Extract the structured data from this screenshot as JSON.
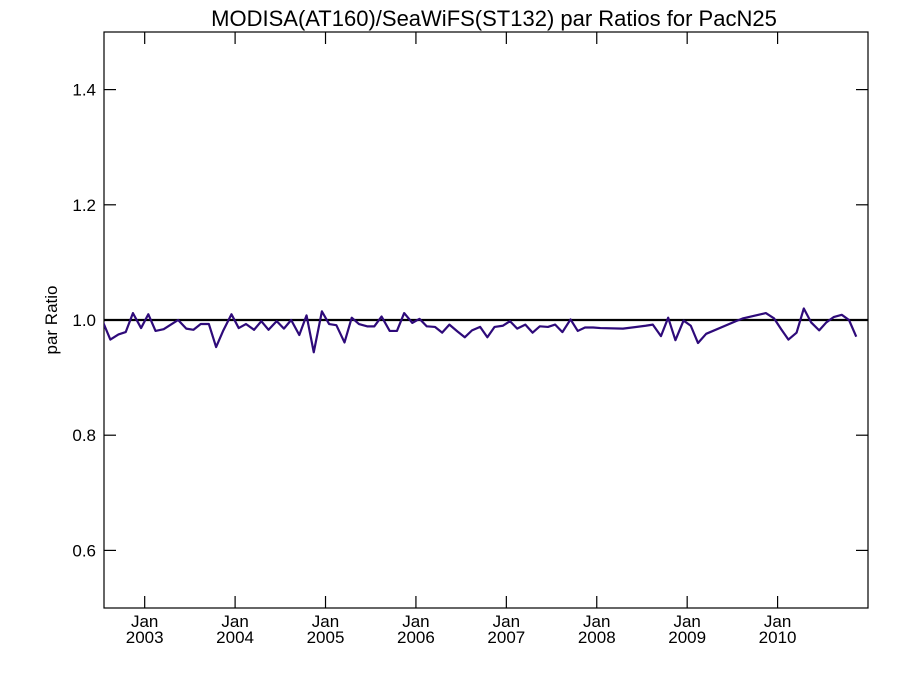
{
  "chart_data": {
    "type": "line",
    "title": "MODISA(AT160)/SeaWiFS(ST132)  par Ratios for PacN25",
    "xlabel": "",
    "ylabel": "par Ratio",
    "xlim": [
      2002.55,
      2011.0
    ],
    "ylim": [
      0.5,
      1.5
    ],
    "yticks": [
      0.6,
      0.8,
      1.0,
      1.2,
      1.4
    ],
    "ytick_labels": [
      "0.6",
      "0.8",
      "1.0",
      "1.2",
      "1.4"
    ],
    "xticks": [
      {
        "value": 2003.0,
        "month": "Jan",
        "year": "2003"
      },
      {
        "value": 2004.0,
        "month": "Jan",
        "year": "2004"
      },
      {
        "value": 2005.0,
        "month": "Jan",
        "year": "2005"
      },
      {
        "value": 2006.0,
        "month": "Jan",
        "year": "2006"
      },
      {
        "value": 2007.0,
        "month": "Jan",
        "year": "2007"
      },
      {
        "value": 2008.0,
        "month": "Jan",
        "year": "2008"
      },
      {
        "value": 2009.0,
        "month": "Jan",
        "year": "2009"
      },
      {
        "value": 2010.0,
        "month": "Jan",
        "year": "2010"
      }
    ],
    "grid": false,
    "reference_line": {
      "y": 1.0,
      "color": "#000000"
    },
    "series": [
      {
        "color": "#2e0a7a",
        "points": [
          [
            2002.54,
            0.996
          ],
          [
            2002.62,
            0.966
          ],
          [
            2002.71,
            0.975
          ],
          [
            2002.79,
            0.979
          ],
          [
            2002.87,
            1.012
          ],
          [
            2002.96,
            0.986
          ],
          [
            2003.04,
            1.01
          ],
          [
            2003.12,
            0.981
          ],
          [
            2003.21,
            0.984
          ],
          [
            2003.29,
            0.992
          ],
          [
            2003.37,
            1.0
          ],
          [
            2003.46,
            0.985
          ],
          [
            2003.54,
            0.983
          ],
          [
            2003.62,
            0.993
          ],
          [
            2003.71,
            0.993
          ],
          [
            2003.79,
            0.953
          ],
          [
            2003.87,
            0.982
          ],
          [
            2003.96,
            1.01
          ],
          [
            2004.04,
            0.986
          ],
          [
            2004.12,
            0.993
          ],
          [
            2004.21,
            0.983
          ],
          [
            2004.29,
            0.998
          ],
          [
            2004.37,
            0.983
          ],
          [
            2004.46,
            0.998
          ],
          [
            2004.54,
            0.985
          ],
          [
            2004.62,
            1.0
          ],
          [
            2004.71,
            0.974
          ],
          [
            2004.79,
            1.008
          ],
          [
            2004.87,
            0.944
          ],
          [
            2004.96,
            1.015
          ],
          [
            2005.04,
            0.993
          ],
          [
            2005.12,
            0.991
          ],
          [
            2005.21,
            0.961
          ],
          [
            2005.29,
            1.004
          ],
          [
            2005.37,
            0.993
          ],
          [
            2005.46,
            0.989
          ],
          [
            2005.54,
            0.989
          ],
          [
            2005.62,
            1.006
          ],
          [
            2005.71,
            0.981
          ],
          [
            2005.79,
            0.981
          ],
          [
            2005.87,
            1.012
          ],
          [
            2005.96,
            0.995
          ],
          [
            2006.04,
            1.002
          ],
          [
            2006.12,
            0.989
          ],
          [
            2006.21,
            0.988
          ],
          [
            2006.29,
            0.978
          ],
          [
            2006.37,
            0.992
          ],
          [
            2006.46,
            0.98
          ],
          [
            2006.54,
            0.97
          ],
          [
            2006.62,
            0.982
          ],
          [
            2006.71,
            0.988
          ],
          [
            2006.79,
            0.97
          ],
          [
            2006.87,
            0.988
          ],
          [
            2006.96,
            0.99
          ],
          [
            2007.04,
            0.998
          ],
          [
            2007.12,
            0.985
          ],
          [
            2007.21,
            0.992
          ],
          [
            2007.29,
            0.978
          ],
          [
            2007.37,
            0.989
          ],
          [
            2007.46,
            0.988
          ],
          [
            2007.54,
            0.992
          ],
          [
            2007.62,
            0.979
          ],
          [
            2007.71,
            1.001
          ],
          [
            2007.79,
            0.981
          ],
          [
            2007.87,
            0.987
          ],
          [
            2007.96,
            0.987
          ],
          [
            2008.04,
            0.986
          ],
          [
            2008.29,
            0.985
          ],
          [
            2008.54,
            0.99
          ],
          [
            2008.62,
            0.992
          ],
          [
            2008.71,
            0.972
          ],
          [
            2008.79,
            1.004
          ],
          [
            2008.87,
            0.965
          ],
          [
            2008.96,
            0.999
          ],
          [
            2009.04,
            0.99
          ],
          [
            2009.12,
            0.96
          ],
          [
            2009.21,
            0.976
          ],
          [
            2009.54,
            0.998
          ],
          [
            2009.62,
            1.003
          ],
          [
            2009.87,
            1.012
          ],
          [
            2009.96,
            1.003
          ],
          [
            2010.04,
            0.984
          ],
          [
            2010.12,
            0.966
          ],
          [
            2010.21,
            0.978
          ],
          [
            2010.29,
            1.02
          ],
          [
            2010.37,
            0.996
          ],
          [
            2010.46,
            0.982
          ],
          [
            2010.54,
            0.996
          ],
          [
            2010.62,
            1.005
          ],
          [
            2010.71,
            1.009
          ],
          [
            2010.79,
            1.0
          ],
          [
            2010.87,
            0.971
          ]
        ]
      }
    ]
  }
}
